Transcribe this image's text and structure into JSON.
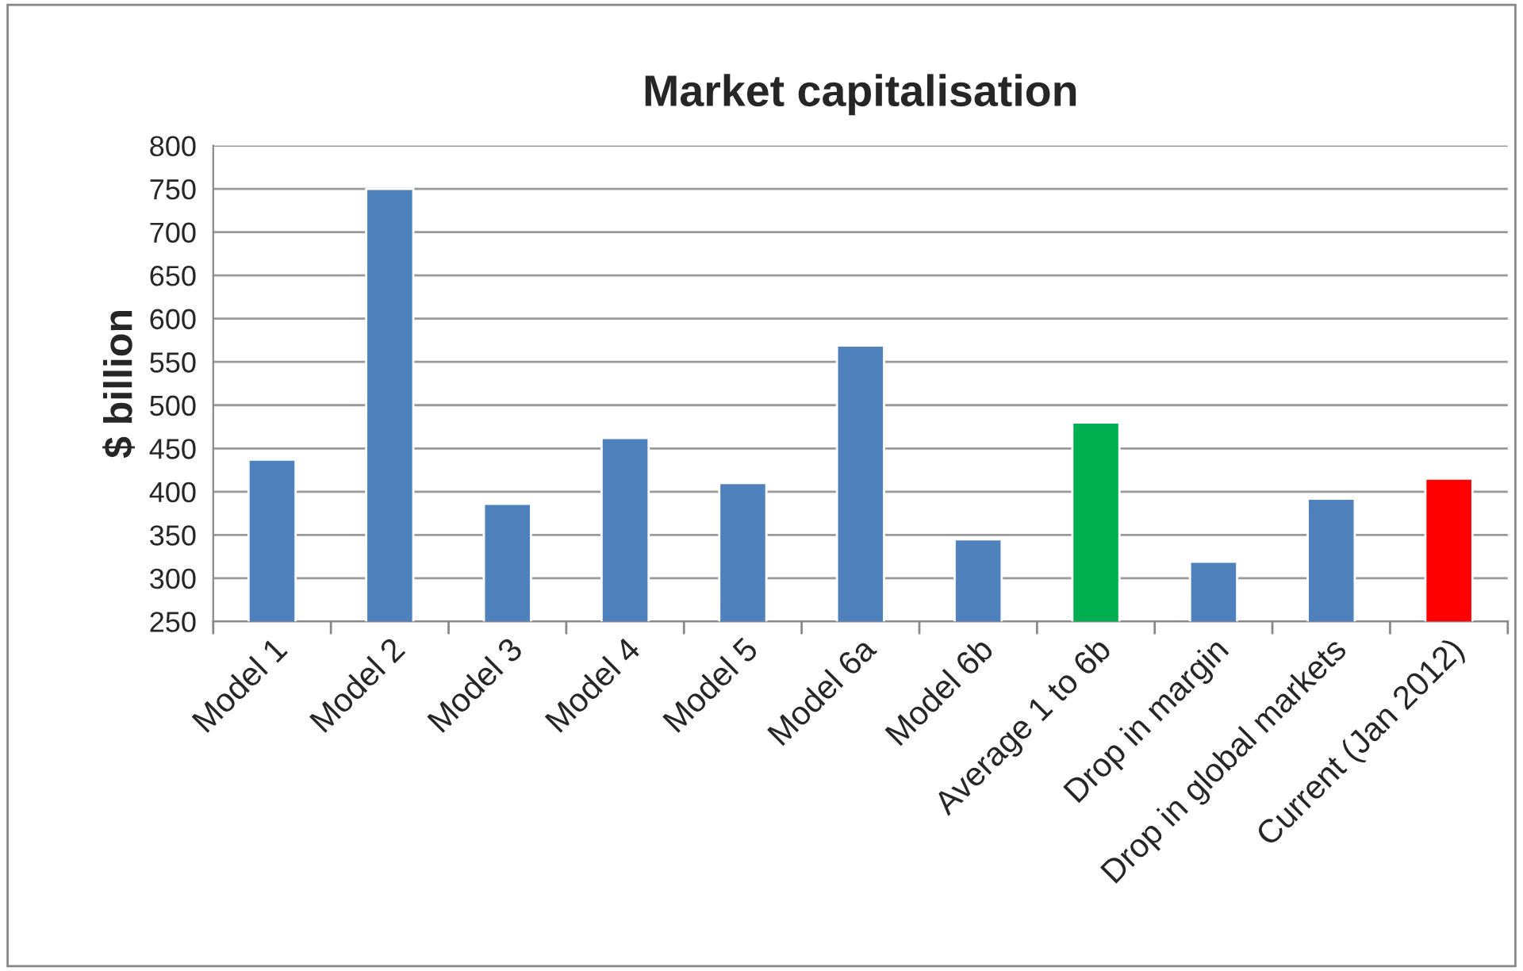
{
  "chart_data": {
    "type": "bar",
    "title": "Market capitalisation",
    "ylabel": "$ billion",
    "categories": [
      "Model 1",
      "Model 2",
      "Model 3",
      "Model 4",
      "Model 5",
      "Model 6a",
      "Model 6b",
      "Average 1 to 6b",
      "Drop in margin",
      "Drop in global markets",
      "Current (Jan 2012)"
    ],
    "values": [
      437,
      750,
      386,
      462,
      410,
      569,
      345,
      480,
      319,
      392,
      415
    ],
    "colors": [
      "#4f81bd",
      "#4f81bd",
      "#4f81bd",
      "#4f81bd",
      "#4f81bd",
      "#4f81bd",
      "#4f81bd",
      "#00b050",
      "#4f81bd",
      "#4f81bd",
      "#ff0000"
    ],
    "ylim": [
      250,
      800
    ],
    "yticks": [
      250,
      300,
      350,
      400,
      450,
      500,
      550,
      600,
      650,
      700,
      750,
      800
    ],
    "grid": "y",
    "legend": false
  }
}
